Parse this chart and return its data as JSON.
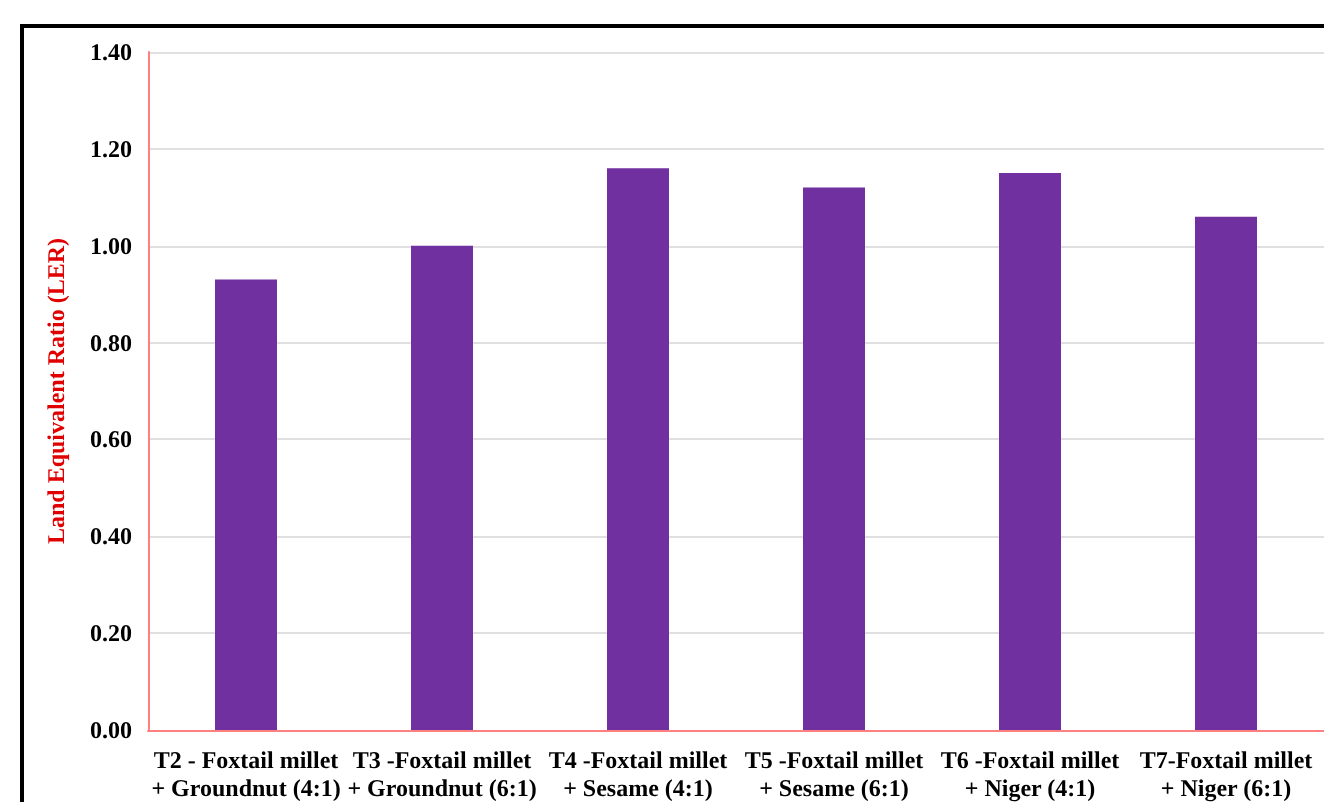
{
  "chart_data": {
    "type": "bar",
    "ylabel": "Land Equivalent Ratio (LER)",
    "categories": [
      "T2 - Foxtail millet\n+ Groundnut (4:1)",
      "T3 -Foxtail millet\n+ Groundnut (6:1)",
      "T4 -Foxtail millet\n+ Sesame (4:1)",
      "T5 -Foxtail millet\n+ Sesame (6:1)",
      "T6 -Foxtail millet\n+ Niger (4:1)",
      "T7-Foxtail millet\n+ Niger (6:1)"
    ],
    "values": [
      0.93,
      1.0,
      1.16,
      1.12,
      1.15,
      1.06
    ],
    "color": "#7030a0",
    "ylim": [
      0,
      1.4
    ],
    "yticks": [
      {
        "value": 0,
        "label": "0.00"
      },
      {
        "value": 0.2,
        "label": "0.20"
      },
      {
        "value": 0.4,
        "label": "0.40"
      },
      {
        "value": 0.6,
        "label": "0.60"
      },
      {
        "value": 0.8,
        "label": "0.80"
      },
      {
        "value": 1.0,
        "label": "1.00"
      },
      {
        "value": 1.2,
        "label": "1.20"
      },
      {
        "value": 1.4,
        "label": "1.40"
      }
    ],
    "grid": "y"
  }
}
